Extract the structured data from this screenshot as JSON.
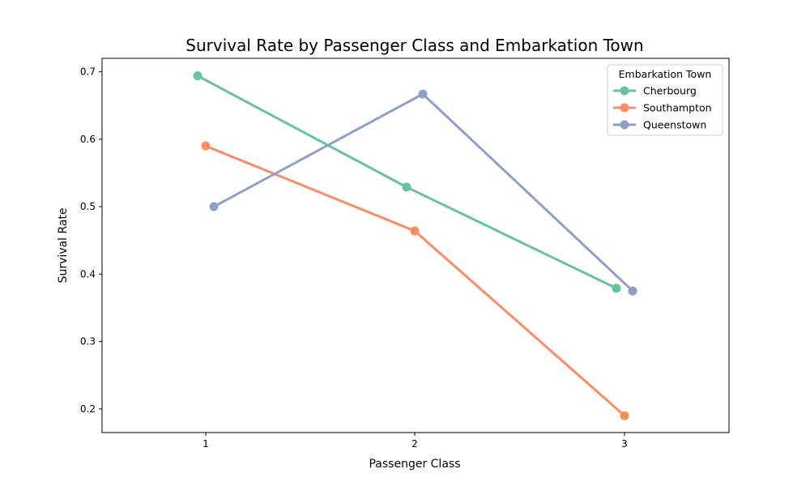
{
  "chart_data": {
    "type": "line",
    "title": "Survival Rate by Passenger Class and Embarkation Town",
    "xlabel": "Passenger Class",
    "ylabel": "Survival Rate",
    "categories": [
      "1",
      "2",
      "3"
    ],
    "ylim": [
      0.165,
      0.72
    ],
    "yticks": [
      "0.2",
      "0.3",
      "0.4",
      "0.5",
      "0.6",
      "0.7"
    ],
    "legend": {
      "title": "Embarkation Town",
      "placement": "top-right"
    },
    "grid": false,
    "series": [
      {
        "name": "Cherbourg",
        "color": "#66c2a5",
        "values": [
          0.694,
          0.529,
          0.379
        ]
      },
      {
        "name": "Southampton",
        "color": "#fc8d62",
        "values": [
          0.59,
          0.464,
          0.19
        ]
      },
      {
        "name": "Queenstown",
        "color": "#8da0cb",
        "values": [
          0.5,
          0.667,
          0.375
        ]
      }
    ]
  }
}
